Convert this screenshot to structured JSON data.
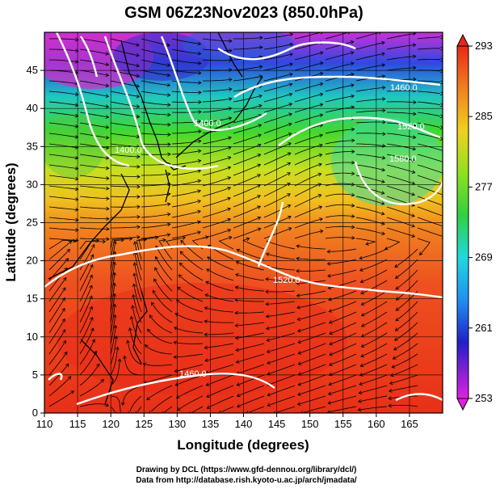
{
  "title": "GSM 06Z23Nov2023 (850.0hPa)",
  "xlabel": "Longitude (degrees)",
  "ylabel": "Latitude  (degrees)",
  "x_ticks": [
    "110",
    "115",
    "120",
    "125",
    "130",
    "135",
    "140",
    "145",
    "150",
    "155",
    "160",
    "165"
  ],
  "y_ticks": [
    "0",
    "5",
    "10",
    "15",
    "20",
    "25",
    "30",
    "35",
    "40",
    "45"
  ],
  "colorbar_ticks": [
    "293",
    "285",
    "277",
    "269",
    "261",
    "253"
  ],
  "contour_labels": [
    "1400.0",
    "1460.0",
    "1520.0",
    "1520.0",
    "1580.0",
    "1460.0",
    "1400.0"
  ],
  "credit_line1": "Drawing by DCL (https://www.gfd-dennou.org/library/dcl/)",
  "credit_line2": "Data from http://database.rish.kyoto-u.ac.jp/arch/jmadata/",
  "colors": {
    "magenta": "#e040e0",
    "blue": "#1820d0",
    "cyan": "#18c8e8",
    "green": "#30d030",
    "yellow": "#e8e020",
    "orange": "#f09020",
    "red": "#e82818"
  }
}
